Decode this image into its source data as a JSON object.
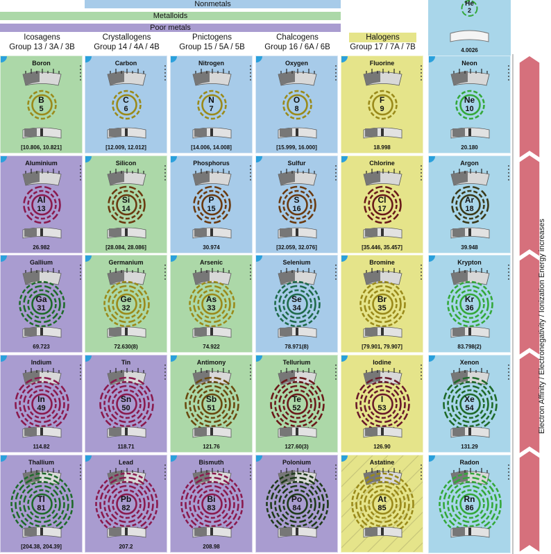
{
  "legend": {
    "nonmetals": "Nonmetals",
    "metalloids": "Metalloids",
    "poor_metals": "Poor metals",
    "halogens_tag": "Halogens"
  },
  "groups": [
    {
      "name": "Icosagens",
      "label": "Group 13 / 3A / 3B"
    },
    {
      "name": "Crystallogens",
      "label": "Group 14 / 4A / 4B"
    },
    {
      "name": "Pnictogens",
      "label": "Group 15 / 5A / 5B"
    },
    {
      "name": "Chalcogens",
      "label": "Group 16 / 6A / 6B"
    },
    {
      "name": "Halogens",
      "label": "Group 17 / 7A / 7B"
    }
  ],
  "helium": {
    "symbol": "He",
    "number": "2",
    "mass": "4.0026"
  },
  "trend_label": "Electron Affinity / Electronegativity / Ionization Energy   increases",
  "colors": {
    "nonmetal": "#a7cbe9",
    "metalloid": "#acd8a8",
    "poor_metal": "#a99cd0",
    "halogen": "#e5e48a",
    "noble": "#a9d6ea",
    "arrow": "#d6707c"
  },
  "elements": [
    {
      "name": "Boron",
      "symbol": "B",
      "number": "5",
      "mass": "[10.806, 10.821]",
      "fill": "metalloid",
      "ring": "#9a8a1a"
    },
    {
      "name": "Carbon",
      "symbol": "C",
      "number": "6",
      "mass": "[12.009, 12.012]",
      "fill": "nonmetal",
      "ring": "#9a8a1a"
    },
    {
      "name": "Nitrogen",
      "symbol": "N",
      "number": "7",
      "mass": "[14.006, 14.008]",
      "fill": "nonmetal",
      "ring": "#9a8a1a"
    },
    {
      "name": "Oxygen",
      "symbol": "O",
      "number": "8",
      "mass": "[15.999, 16.000]",
      "fill": "nonmetal",
      "ring": "#9a8a1a"
    },
    {
      "name": "Fluorine",
      "symbol": "F",
      "number": "9",
      "mass": "18.998",
      "fill": "halogen",
      "ring": "#9a8a1a"
    },
    {
      "name": "Neon",
      "symbol": "Ne",
      "number": "10",
      "mass": "20.180",
      "fill": "noble",
      "ring": "#34a83a"
    },
    {
      "name": "Aluminium",
      "symbol": "Al",
      "number": "13",
      "mass": "26.982",
      "fill": "poor_metal",
      "ring": "#8a1a4e"
    },
    {
      "name": "Silicon",
      "symbol": "Si",
      "number": "14",
      "mass": "[28.084, 28.086]",
      "fill": "metalloid",
      "ring": "#6a3a10"
    },
    {
      "name": "Phosphorus",
      "symbol": "P",
      "number": "15",
      "mass": "30.974",
      "fill": "nonmetal",
      "ring": "#6a3a10"
    },
    {
      "name": "Sulfur",
      "symbol": "S",
      "number": "16",
      "mass": "[32.059, 32.076]",
      "fill": "nonmetal",
      "ring": "#6a3a10"
    },
    {
      "name": "Chlorine",
      "symbol": "Cl",
      "number": "17",
      "mass": "[35.446, 35.457]",
      "fill": "halogen",
      "ring": "#6a1a1a"
    },
    {
      "name": "Argon",
      "symbol": "Ar",
      "number": "18",
      "mass": "39.948",
      "fill": "noble",
      "ring": "#3a3a1a"
    },
    {
      "name": "Gallium",
      "symbol": "Ga",
      "number": "31",
      "mass": "69.723",
      "fill": "poor_metal",
      "ring": "#1f6a2a"
    },
    {
      "name": "Germanium",
      "symbol": "Ge",
      "number": "32",
      "mass": "72.630(8)",
      "fill": "metalloid",
      "ring": "#9a8a1a"
    },
    {
      "name": "Arsenic",
      "symbol": "As",
      "number": "33",
      "mass": "74.922",
      "fill": "metalloid",
      "ring": "#9a8a1a"
    },
    {
      "name": "Selenium",
      "symbol": "Se",
      "number": "34",
      "mass": "78.971(8)",
      "fill": "nonmetal",
      "ring": "#1f6a4a"
    },
    {
      "name": "Bromine",
      "symbol": "Br",
      "number": "35",
      "mass": "[79.901, 79.907]",
      "fill": "halogen",
      "ring": "#9a8a1a"
    },
    {
      "name": "Krypton",
      "symbol": "Kr",
      "number": "36",
      "mass": "83.798(2)",
      "fill": "noble",
      "ring": "#34a83a"
    },
    {
      "name": "Indium",
      "symbol": "In",
      "number": "49",
      "mass": "114.82",
      "fill": "poor_metal",
      "ring": "#8a1a4e"
    },
    {
      "name": "Tin",
      "symbol": "Sn",
      "number": "50",
      "mass": "118.71",
      "fill": "poor_metal",
      "ring": "#8a1a4e"
    },
    {
      "name": "Antimony",
      "symbol": "Sb",
      "number": "51",
      "mass": "121.76",
      "fill": "metalloid",
      "ring": "#6a4a10"
    },
    {
      "name": "Tellurium",
      "symbol": "Te",
      "number": "52",
      "mass": "127.60(3)",
      "fill": "metalloid",
      "ring": "#6a1a1a"
    },
    {
      "name": "Iodine",
      "symbol": "I",
      "number": "53",
      "mass": "126.90",
      "fill": "halogen",
      "ring": "#6a1a2a"
    },
    {
      "name": "Xenon",
      "symbol": "Xe",
      "number": "54",
      "mass": "131.29",
      "fill": "noble",
      "ring": "#1f6a2a"
    },
    {
      "name": "Thallium",
      "symbol": "Tl",
      "number": "81",
      "mass": "[204.38, 204.39]",
      "fill": "poor_metal",
      "ring": "#1f6a2a"
    },
    {
      "name": "Lead",
      "symbol": "Pb",
      "number": "82",
      "mass": "207.2",
      "fill": "poor_metal",
      "ring": "#8a1a4e"
    },
    {
      "name": "Bismuth",
      "symbol": "Bi",
      "number": "83",
      "mass": "208.98",
      "fill": "poor_metal",
      "ring": "#8a1a4e"
    },
    {
      "name": "Polonium",
      "symbol": "Po",
      "number": "84",
      "mass": "",
      "fill": "poor_metal",
      "ring": "#1f3a1a"
    },
    {
      "name": "Astatine",
      "symbol": "At",
      "number": "85",
      "mass": "",
      "fill": "halogen",
      "ring": "#9a8a1a"
    },
    {
      "name": "Radon",
      "symbol": "Rn",
      "number": "86",
      "mass": "",
      "fill": "noble",
      "ring": "#34a83a"
    }
  ]
}
